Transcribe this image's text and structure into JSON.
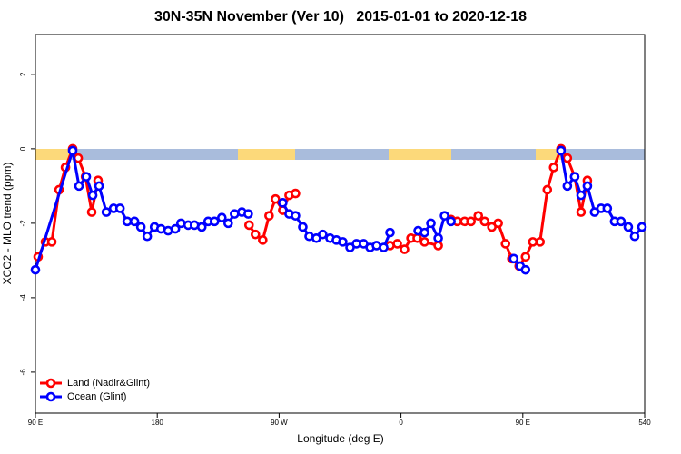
{
  "chart_data": {
    "type": "line",
    "title": "30N-35N November (Ver 10)   2015-01-01 to 2020-12-18",
    "x_label": "Longitude (deg E)",
    "y_label": "XCO2 - MLO trend (ppm)",
    "xlim": [
      90,
      540
    ],
    "xticks": [
      {
        "value": 90,
        "label": "90 E"
      },
      180,
      {
        "value": 270,
        "label": "90 W"
      },
      {
        "value": 360,
        "label": "0"
      },
      {
        "value": 450,
        "label": "90 E"
      },
      540
    ],
    "ylim": [
      -7.1,
      3.07
    ],
    "yticks": [
      -6,
      -4,
      -2,
      0,
      2
    ],
    "legend": "bottom-left",
    "series": [
      {
        "name": "Land (Nadir&Glint)",
        "color": "#ff0000",
        "x": [
          92,
          97.4,
          102.1,
          107.5,
          112.2,
          117.5,
          121.6,
          127,
          131.6,
          136.3,
          null,
          247.8,
          252.5,
          257.9,
          262.6,
          267.3,
          272.7,
          277.4,
          282.1,
          null,
          351.9,
          357.3,
          362.6,
          367.4,
          372,
          377.4,
          387.5,
          null,
          396.9,
          401.6,
          407,
          411.7,
          417.1,
          421.8,
          427.1,
          431.8,
          437.2,
          441.9,
          447.3,
          452,
          457.4,
          462.7,
          468.1,
          472.8,
          478.2,
          482.9,
          488.3,
          493,
          497.7
        ],
        "values": [
          -2.9,
          -2.5,
          -2.5,
          -1.1,
          -0.5,
          0,
          -0.25,
          -0.75,
          -1.7,
          -0.85,
          null,
          -2.05,
          -2.3,
          -2.45,
          -1.8,
          -1.35,
          -1.65,
          -1.25,
          -1.2,
          null,
          -2.6,
          -2.55,
          -2.7,
          -2.4,
          -2.4,
          -2.5,
          -2.6,
          null,
          -1.9,
          -1.95,
          -1.95,
          -1.95,
          -1.8,
          -1.95,
          -2.1,
          -2.0,
          -2.55,
          -2.95,
          -3.15,
          -2.9,
          -2.5,
          -2.5,
          -1.1,
          -0.5,
          0,
          -0.25,
          -0.75,
          -1.7,
          -0.85
        ]
      },
      {
        "name": "Ocean (Glint)",
        "color": "#0000ff",
        "x": [
          90,
          117.5,
          122.2,
          127.6,
          132.3,
          137,
          142.4,
          147.8,
          152.5,
          157.8,
          163.2,
          167.9,
          172.6,
          178,
          182.7,
          188,
          193.4,
          197.5,
          202.8,
          207.5,
          212.9,
          217.6,
          222.3,
          227.7,
          232.4,
          237.1,
          242.5,
          247.2,
          null,
          272.7,
          277.4,
          282.1,
          287.5,
          292.2,
          297.5,
          302.2,
          307.6,
          312.3,
          317,
          322.4,
          327.1,
          332.4,
          337.2,
          341.9,
          347.2,
          351.9,
          null,
          372.7,
          377.4,
          382.1,
          387.5,
          392.2,
          396.9,
          null,
          443.3,
          448,
          452,
          null,
          478.2,
          482.9,
          488.3,
          493,
          497.7,
          503,
          507.8,
          512.4,
          517.8,
          522.5,
          527.9,
          532.6,
          538
        ],
        "values": [
          -3.25,
          -0.05,
          -1.0,
          -0.75,
          -1.25,
          -1.0,
          -1.7,
          -1.6,
          -1.6,
          -1.95,
          -1.95,
          -2.1,
          -2.35,
          -2.1,
          -2.15,
          -2.2,
          -2.15,
          -2.0,
          -2.05,
          -2.05,
          -2.1,
          -1.95,
          -1.95,
          -1.85,
          -2.0,
          -1.75,
          -1.7,
          -1.75,
          null,
          -1.45,
          -1.75,
          -1.8,
          -2.1,
          -2.35,
          -2.4,
          -2.3,
          -2.4,
          -2.45,
          -2.5,
          -2.65,
          -2.55,
          -2.55,
          -2.65,
          -2.6,
          -2.65,
          -2.25,
          null,
          -2.2,
          -2.25,
          -2.0,
          -2.4,
          -1.8,
          -1.95,
          null,
          -2.95,
          -3.15,
          -3.25,
          null,
          -0.05,
          -1.0,
          -0.75,
          -1.25,
          -1.0,
          -1.7,
          -1.6,
          -1.6,
          -1.95,
          -1.95,
          -2.1,
          -2.35,
          -2.1
        ]
      }
    ]
  }
}
